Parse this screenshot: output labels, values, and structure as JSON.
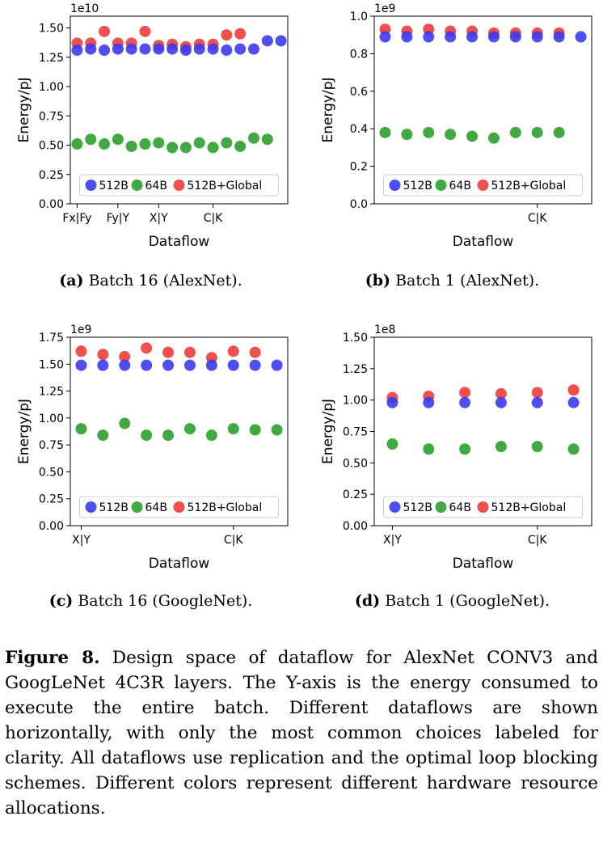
{
  "figure": {
    "label": "Figure 8.",
    "text": "Design space of dataflow for AlexNet CONV3 and GoogLeNet 4C3R layers. The Y-axis is the energy consumed to execute the entire batch. Different dataflows are shown horizontally, with only the most common choices labeled for clarity. All dataflows use replication and the optimal loop blocking schemes. Different colors represent different hardware resource allocations."
  },
  "colors": {
    "512B": "#3b3bef",
    "64B": "#2ca02c",
    "512B+Global": "#ef3b3b"
  },
  "chart_data": [
    {
      "id": "a",
      "type": "scatter",
      "caption_label": "(a)",
      "caption_text": "Batch 16 (AlexNet).",
      "xlabel": "Dataflow",
      "ylabel": "Energy/pJ",
      "y_multiplier": "1e10",
      "ylim": [
        0,
        1.6
      ],
      "yticks": [
        "0.00",
        "0.25",
        "0.50",
        "0.75",
        "1.00",
        "1.25",
        "1.50"
      ],
      "ytick_values": [
        0,
        0.25,
        0.5,
        0.75,
        1.0,
        1.25,
        1.5
      ],
      "xlim": [
        -0.5,
        15.5
      ],
      "xticks": [
        {
          "pos": 0,
          "label": "Fx|Fy"
        },
        {
          "pos": 3,
          "label": "Fy|Y"
        },
        {
          "pos": 6,
          "label": "X|Y"
        },
        {
          "pos": 10,
          "label": "C|K"
        }
      ],
      "legend": [
        "512B",
        "64B",
        "512B+Global"
      ],
      "legend_loc": "lower center",
      "series": [
        {
          "name": "512B",
          "values": [
            1.31,
            1.32,
            1.31,
            1.32,
            1.32,
            1.32,
            1.32,
            1.32,
            1.31,
            1.32,
            1.32,
            1.31,
            1.32,
            1.32,
            1.39,
            1.39
          ]
        },
        {
          "name": "64B",
          "values": [
            0.51,
            0.55,
            0.51,
            0.55,
            0.49,
            0.51,
            0.52,
            0.48,
            0.48,
            0.52,
            0.48,
            0.52,
            0.49,
            0.56,
            0.55
          ]
        },
        {
          "name": "512B+Global",
          "values": [
            1.37,
            1.37,
            1.47,
            1.37,
            1.37,
            1.47,
            1.35,
            1.36,
            1.34,
            1.36,
            1.36,
            1.44,
            1.45
          ]
        }
      ]
    },
    {
      "id": "b",
      "type": "scatter",
      "caption_label": "(b)",
      "caption_text": "Batch 1 (AlexNet).",
      "xlabel": "Dataflow",
      "ylabel": "Energy/pJ",
      "y_multiplier": "1e9",
      "ylim": [
        0,
        1.0
      ],
      "yticks": [
        "0.0",
        "0.2",
        "0.4",
        "0.6",
        "0.8",
        "1.0"
      ],
      "ytick_values": [
        0,
        0.2,
        0.4,
        0.6,
        0.8,
        1.0
      ],
      "xlim": [
        -0.5,
        9.5
      ],
      "xticks": [
        {
          "pos": 7,
          "label": "C|K"
        }
      ],
      "legend": [
        "512B",
        "64B",
        "512B+Global"
      ],
      "legend_loc": "lower center",
      "series": [
        {
          "name": "512B",
          "values": [
            0.89,
            0.89,
            0.89,
            0.89,
            0.89,
            0.89,
            0.89,
            0.89,
            0.89,
            0.89
          ]
        },
        {
          "name": "64B",
          "values": [
            0.38,
            0.37,
            0.38,
            0.37,
            0.36,
            0.35,
            0.38,
            0.38,
            0.38
          ]
        },
        {
          "name": "512B+Global",
          "values": [
            0.93,
            0.92,
            0.93,
            0.92,
            0.92,
            0.91,
            0.91,
            0.91,
            0.91
          ]
        }
      ]
    },
    {
      "id": "c",
      "type": "scatter",
      "caption_label": "(c)",
      "caption_text": "Batch 16 (GoogleNet).",
      "xlabel": "Dataflow",
      "ylabel": "Energy/pJ",
      "y_multiplier": "1e9",
      "ylim": [
        0,
        1.75
      ],
      "yticks": [
        "0.00",
        "0.25",
        "0.50",
        "0.75",
        "1.00",
        "1.25",
        "1.50",
        "1.75"
      ],
      "ytick_values": [
        0,
        0.25,
        0.5,
        0.75,
        1.0,
        1.25,
        1.5,
        1.75
      ],
      "xlim": [
        -0.5,
        9.5
      ],
      "xticks": [
        {
          "pos": 0,
          "label": "X|Y"
        },
        {
          "pos": 7,
          "label": "C|K"
        }
      ],
      "legend": [
        "512B",
        "64B",
        "512B+Global"
      ],
      "legend_loc": "lower center",
      "series": [
        {
          "name": "512B",
          "values": [
            1.49,
            1.49,
            1.49,
            1.49,
            1.49,
            1.49,
            1.49,
            1.49,
            1.49,
            1.49
          ]
        },
        {
          "name": "64B",
          "values": [
            0.9,
            0.84,
            0.95,
            0.84,
            0.84,
            0.9,
            0.84,
            0.9,
            0.89,
            0.89
          ]
        },
        {
          "name": "512B+Global",
          "values": [
            1.62,
            1.59,
            1.57,
            1.65,
            1.61,
            1.61,
            1.56,
            1.62,
            1.61
          ]
        }
      ]
    },
    {
      "id": "d",
      "type": "scatter",
      "caption_label": "(d)",
      "caption_text": "Batch 1 (GoogleNet).",
      "xlabel": "Dataflow",
      "ylabel": "Energy/pJ",
      "y_multiplier": "1e8",
      "ylim": [
        0,
        1.5
      ],
      "yticks": [
        "0.00",
        "0.25",
        "0.50",
        "0.75",
        "1.00",
        "1.25",
        "1.50"
      ],
      "ytick_values": [
        0,
        0.25,
        0.5,
        0.75,
        1.0,
        1.25,
        1.5
      ],
      "xlim": [
        -0.5,
        5.5
      ],
      "xticks": [
        {
          "pos": 0,
          "label": "X|Y"
        },
        {
          "pos": 4,
          "label": "C|K"
        }
      ],
      "legend": [
        "512B",
        "64B",
        "512B+Global"
      ],
      "legend_loc": "lower center",
      "series": [
        {
          "name": "512B",
          "values": [
            0.98,
            0.98,
            0.98,
            0.98,
            0.98,
            0.98
          ]
        },
        {
          "name": "64B",
          "values": [
            0.65,
            0.61,
            0.61,
            0.63,
            0.63,
            0.61
          ]
        },
        {
          "name": "512B+Global",
          "values": [
            1.02,
            1.03,
            1.06,
            1.05,
            1.06,
            1.08
          ]
        }
      ]
    }
  ]
}
